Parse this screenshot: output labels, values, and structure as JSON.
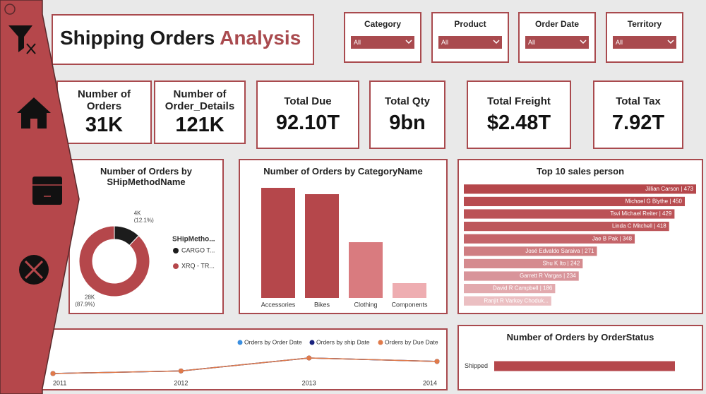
{
  "header": {
    "title_part1": "Shipping Orders",
    "title_part2": "Analysis"
  },
  "filters": [
    {
      "label": "Category",
      "value": "All"
    },
    {
      "label": "Product",
      "value": "All"
    },
    {
      "label": "Order Date",
      "value": "All"
    },
    {
      "label": "Territory",
      "value": "All"
    }
  ],
  "kpis": [
    {
      "label": "Number of Orders",
      "value": "31K"
    },
    {
      "label": "Number of Order_Details",
      "value": "121K"
    },
    {
      "label": "Total Due",
      "value": "92.10T"
    },
    {
      "label": "Total Qty",
      "value": "9bn"
    },
    {
      "label": "Total Freight",
      "value": "$2.48T"
    },
    {
      "label": "Total Tax",
      "value": "7.92T"
    }
  ],
  "chart_data": [
    {
      "type": "donut",
      "title": "Number of Orders by SHipMethodName",
      "legend_title": "SHipMetho...",
      "categories": [
        "CARGO T...",
        "XRQ - TR..."
      ],
      "values": [
        12.1,
        87.9
      ],
      "value_labels": [
        "(12.1%)",
        "(87.9%)"
      ],
      "counts": [
        4000,
        28000
      ],
      "count_labels": [
        "4K",
        "28K"
      ],
      "colors": [
        "#1c1c1c",
        "#b5474b"
      ]
    },
    {
      "type": "bar",
      "title": "Number of Orders by CategoryName",
      "categories": [
        "Accessories",
        "Bikes",
        "Clothing",
        "Components"
      ],
      "values": [
        156,
        147,
        79,
        21
      ],
      "colors": [
        "#b5474b",
        "#b5474b",
        "#d97b7f",
        "#eeadb1"
      ]
    },
    {
      "type": "hbar",
      "title": "Top 10 sales person",
      "values": [
        473,
        450,
        429,
        418,
        348,
        271,
        242,
        234,
        186,
        178
      ],
      "value_labels": [
        "Jillian Carson | 473",
        "Michael G Blythe | 450",
        "Tsvi Michael Reiter | 429",
        "Linda C Mitchell | 418",
        "Jae B Pak | 348",
        "José Edvaldo Saraiva | 271",
        "Shu K Ito | 242",
        "Garrett R Vargas | 234",
        "David R Campbell | 186",
        "Ranjit R Varkey Choduk..."
      ],
      "colors": [
        "#b5474b",
        "#b84c50",
        "#bb5256",
        "#bd575b",
        "#c46469",
        "#cf7e82",
        "#d58b8f",
        "#d8949a",
        "#e2aaae",
        "#ebbfc2"
      ]
    },
    {
      "type": "line",
      "categories": [
        "2011",
        "2012",
        "2013",
        "2014"
      ],
      "series": [
        {
          "name": "Orders by Order Date",
          "color": "#3b8fe0",
          "values": [
            1600,
            3700,
            14200,
            11400
          ]
        },
        {
          "name": "Orders by ship Date",
          "color": "#1a237e",
          "values": [
            1600,
            3700,
            14200,
            11400
          ]
        },
        {
          "name": "Orders by Due Date",
          "color": "#e07a4a",
          "values": [
            1600,
            3700,
            14200,
            11400
          ]
        }
      ]
    },
    {
      "type": "hbar",
      "title": "Number of Orders by OrderStatus",
      "categories": [
        "Shipped"
      ],
      "values": [
        31465
      ],
      "colors": [
        "#b5474b"
      ]
    }
  ]
}
